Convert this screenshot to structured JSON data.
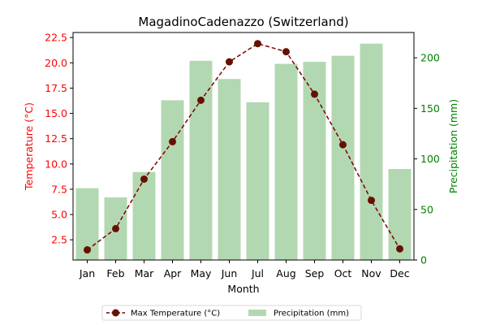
{
  "chart_data": {
    "type": "bar+line",
    "title": "MagadinoCadenazzo (Switzerland)",
    "xlabel": "Month",
    "ylabel_left": "Temperature (°C)",
    "ylabel_right": "Precipitation (mm)",
    "categories": [
      "Jan",
      "Feb",
      "Mar",
      "Apr",
      "May",
      "Jun",
      "Jul",
      "Aug",
      "Sep",
      "Oct",
      "Nov",
      "Dec"
    ],
    "series": [
      {
        "name": "Max Temperature (°C)",
        "axis": "left",
        "style": "line-dashed-markers",
        "values": [
          1.5,
          3.6,
          8.5,
          12.2,
          16.3,
          20.1,
          21.9,
          21.1,
          16.9,
          11.9,
          6.4,
          1.6
        ]
      },
      {
        "name": "Precipitation (mm)",
        "axis": "right",
        "style": "bar",
        "values": [
          71,
          62,
          87,
          158,
          197,
          179,
          156,
          194,
          196,
          202,
          214,
          90
        ]
      }
    ],
    "ylim_left": [
      0.5,
      23.0
    ],
    "yticks_left": [
      2.5,
      5.0,
      7.5,
      10.0,
      12.5,
      15.0,
      17.5,
      20.0,
      22.5
    ],
    "ytick_labels_left": [
      "2.5",
      "5.0",
      "7.5",
      "10.0",
      "12.5",
      "15.0",
      "17.5",
      "20.0",
      "22.5"
    ],
    "ylim_right": [
      0,
      225
    ],
    "yticks_right": [
      0,
      50,
      100,
      150,
      200
    ],
    "ytick_labels_right": [
      "0",
      "50",
      "100",
      "150",
      "200"
    ],
    "grid": false,
    "legend_position": "bottom-center",
    "colors": {
      "line": "#800000",
      "marker": "#661100",
      "bar": "#b2d8b2",
      "left_axis": "#ff0000",
      "right_axis": "#008000"
    }
  }
}
